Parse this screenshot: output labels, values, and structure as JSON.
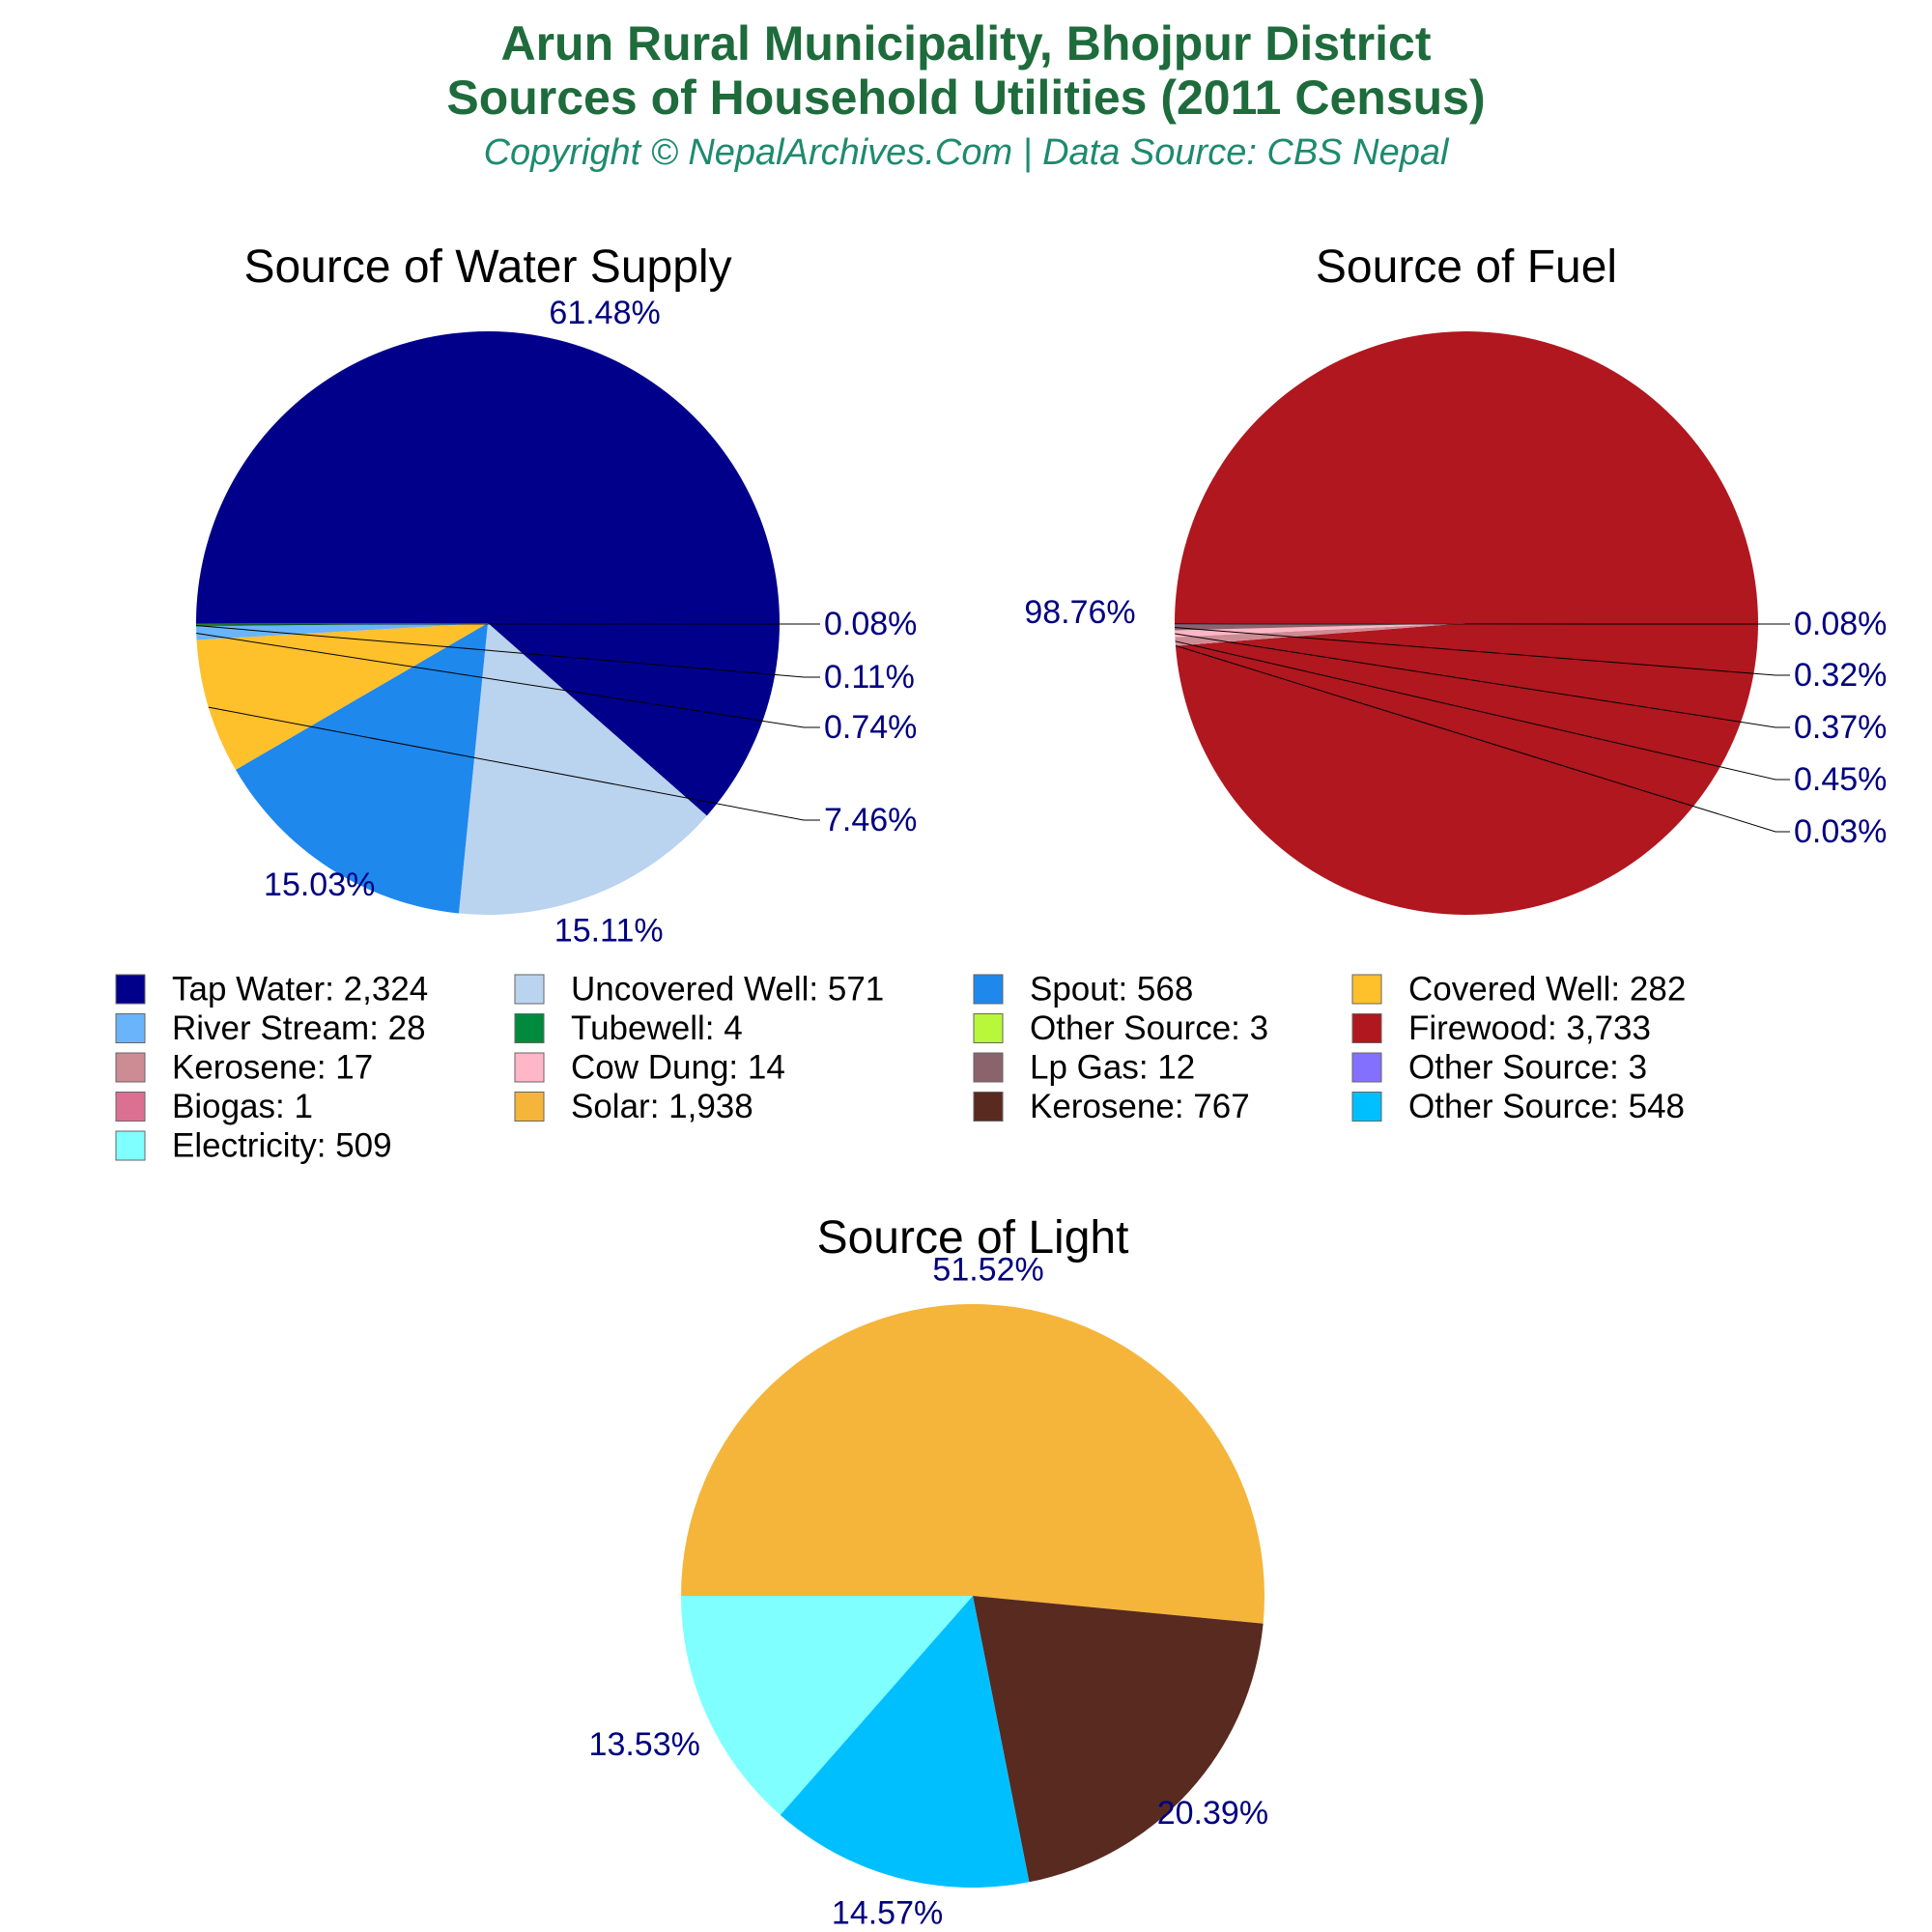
{
  "header": {
    "title_line1": "Arun Rural Municipality, Bhojpur District",
    "title_line2": "Sources of Household Utilities (2011 Census)",
    "subtitle": "Copyright © NepalArchives.Com | Data Source: CBS Nepal"
  },
  "chart_data": [
    {
      "type": "pie",
      "title": "Source of Water Supply",
      "slices": [
        {
          "name": "Tap Water",
          "value": 2324,
          "display": "2,324",
          "percent": "61.48%",
          "color": "#00008b"
        },
        {
          "name": "Uncovered Well",
          "value": 571,
          "display": "571",
          "percent": "15.11%",
          "color": "#bad3ee"
        },
        {
          "name": "Spout",
          "value": 568,
          "display": "568",
          "percent": "15.03%",
          "color": "#1e88ed"
        },
        {
          "name": "Covered Well",
          "value": 282,
          "display": "282",
          "percent": "7.46%",
          "color": "#fec02b"
        },
        {
          "name": "River Stream",
          "value": 28,
          "display": "28",
          "percent": "0.74%",
          "color": "#6ab4fb"
        },
        {
          "name": "Tubewell",
          "value": 4,
          "display": "4",
          "percent": "0.11%",
          "color": "#008a3d"
        },
        {
          "name": "Other Source",
          "value": 3,
          "display": "3",
          "percent": "0.08%",
          "color": "#b8f73a"
        }
      ]
    },
    {
      "type": "pie",
      "title": "Source of Fuel",
      "slices": [
        {
          "name": "Firewood",
          "value": 3733,
          "display": "3,733",
          "percent": "98.76%",
          "color": "#b0171f"
        },
        {
          "name": "Kerosene",
          "value": 17,
          "display": "17",
          "percent": "0.45%",
          "color": "#cd8b93"
        },
        {
          "name": "Cow Dung",
          "value": 14,
          "display": "14",
          "percent": "0.37%",
          "color": "#ffb6c6"
        },
        {
          "name": "Lp Gas",
          "value": 12,
          "display": "12",
          "percent": "0.32%",
          "color": "#8b636c"
        },
        {
          "name": "Other Source",
          "value": 3,
          "display": "3",
          "percent": "0.08%",
          "color": "#8470ff"
        },
        {
          "name": "Biogas",
          "value": 1,
          "display": "1",
          "percent": "0.03%",
          "color": "#db7093"
        }
      ]
    },
    {
      "type": "pie",
      "title": "Source of Light",
      "slices": [
        {
          "name": "Solar",
          "value": 1938,
          "display": "1,938",
          "percent": "51.52%",
          "color": "#f5b53a"
        },
        {
          "name": "Kerosene",
          "value": 767,
          "display": "767",
          "percent": "20.39%",
          "color": "#582a20"
        },
        {
          "name": "Other Source",
          "value": 548,
          "display": "548",
          "percent": "14.57%",
          "color": "#00bfff"
        },
        {
          "name": "Electricity",
          "value": 509,
          "display": "509",
          "percent": "13.53%",
          "color": "#7fffff"
        }
      ]
    }
  ]
}
